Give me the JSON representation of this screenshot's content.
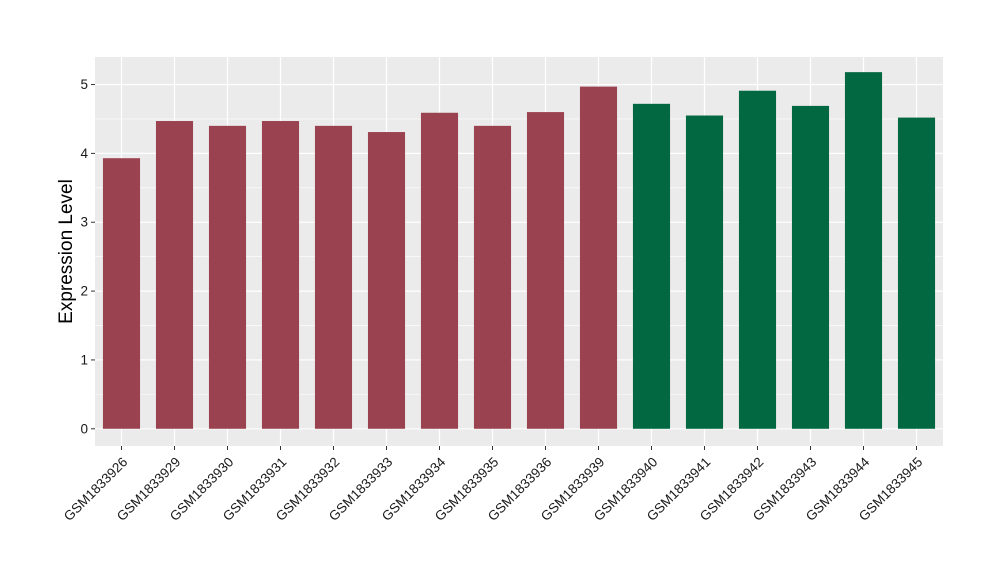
{
  "chart_data": {
    "type": "bar",
    "title": "",
    "xlabel": "",
    "ylabel": "Expression Level",
    "ylim": [
      -0.25,
      5.4
    ],
    "yticks": [
      0,
      1,
      2,
      3,
      4,
      5
    ],
    "grid": true,
    "legend": "none",
    "categories": [
      "GSM1833926",
      "GSM1833929",
      "GSM1833930",
      "GSM1833931",
      "GSM1833932",
      "GSM1833933",
      "GSM1833934",
      "GSM1833935",
      "GSM1833936",
      "GSM1833939",
      "GSM1833940",
      "GSM1833941",
      "GSM1833942",
      "GSM1833943",
      "GSM1833944",
      "GSM1833945"
    ],
    "values": [
      3.93,
      4.47,
      4.4,
      4.47,
      4.4,
      4.31,
      4.59,
      4.4,
      4.6,
      4.97,
      4.72,
      4.55,
      4.91,
      4.69,
      5.18,
      4.52
    ],
    "groups": [
      0,
      0,
      0,
      0,
      0,
      0,
      0,
      0,
      0,
      0,
      1,
      1,
      1,
      1,
      1,
      1
    ],
    "group_colors": [
      "#9b4250",
      "#026842"
    ],
    "panel_background": "#ebebeb",
    "grid_color": "#ffffff"
  }
}
